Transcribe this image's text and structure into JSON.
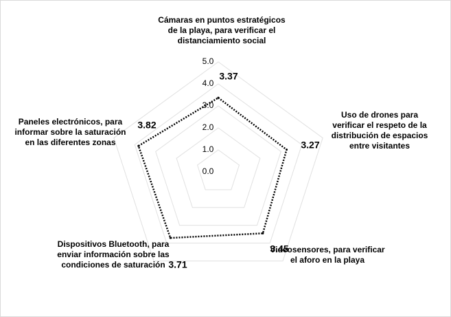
{
  "chart_data": {
    "type": "radar",
    "categories": [
      "Cámaras en puntos estratégicos de la playa, para verificar el distanciamiento social",
      "Uso de drones para verificar el respeto de la distribución de espacios entre visitantes",
      "Videosensores, para verificar el aforo en la playa",
      "Dispositivos Bluetooth, para enviar información sobre las condiciones de saturación",
      "Paneles electrónicos, para informar sobre la saturación en las diferentes zonas"
    ],
    "values": [
      3.37,
      3.27,
      3.45,
      3.71,
      3.82
    ],
    "color": "#000000",
    "rlim": [
      0,
      5
    ],
    "rticks": [
      {
        "value": 0,
        "label": "0.0"
      },
      {
        "value": 1,
        "label": "1.0"
      },
      {
        "value": 2,
        "label": "2.0"
      },
      {
        "value": 3,
        "label": "3.0"
      },
      {
        "value": 4,
        "label": "4.0"
      },
      {
        "value": 5,
        "label": "5.0"
      }
    ],
    "grid": true
  }
}
